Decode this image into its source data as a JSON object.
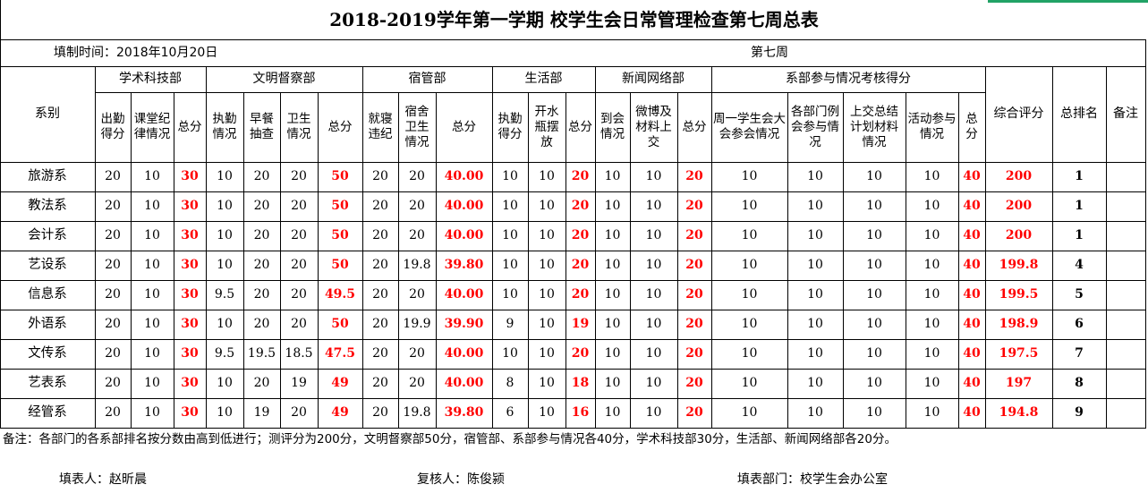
{
  "title": "2018-2019学年第一学期 校学生会日常管理检查第七周总表",
  "fill_time": "填制时间：2018年10月20日",
  "week": "第七周",
  "groups": {
    "academic": "学术科技部",
    "civil": "文明督察部",
    "dorm": "宿管部",
    "life": "生活部",
    "news": "新闻网络部",
    "dept": "系部参与情况考核得分"
  },
  "headers": {
    "dept_col": "系别",
    "a_attendance": "出勤得分",
    "a_discipline": "课堂纪律情况",
    "a_total": "总分",
    "c_duty": "执勤情况",
    "c_breakfast": "早餐抽查",
    "c_hygiene": "卫生情况",
    "c_total": "总分",
    "d_sleep": "就寝违纪",
    "d_hygiene": "宿舍卫生情况",
    "d_total": "总分",
    "l_duty": "执勤得分",
    "l_bottle": "开水瓶摆放",
    "l_total": "总分",
    "n_attend": "到会情况",
    "n_weibo": "微博及材料上交",
    "n_total": "总分",
    "p_weekly": "周一学生会大会参会情况",
    "p_meeting": "各部门例会参与情况",
    "p_plan": "上交总结计划材料情况",
    "p_activity": "活动参与情况",
    "p_total": "总分",
    "overall": "综合评分",
    "rank": "总排名",
    "remark": "备注"
  },
  "rows": [
    {
      "name": "旅游系",
      "v": [
        "20",
        "10",
        "30",
        "10",
        "20",
        "20",
        "50",
        "20",
        "20",
        "40.00",
        "10",
        "10",
        "20",
        "10",
        "10",
        "20",
        "10",
        "10",
        "10",
        "10",
        "40",
        "200",
        "1",
        ""
      ]
    },
    {
      "name": "教法系",
      "v": [
        "20",
        "10",
        "30",
        "10",
        "20",
        "20",
        "50",
        "20",
        "20",
        "40.00",
        "10",
        "10",
        "20",
        "10",
        "10",
        "20",
        "10",
        "10",
        "10",
        "10",
        "40",
        "200",
        "1",
        ""
      ]
    },
    {
      "name": "会计系",
      "v": [
        "20",
        "10",
        "30",
        "10",
        "20",
        "20",
        "50",
        "20",
        "20",
        "40.00",
        "10",
        "10",
        "20",
        "10",
        "10",
        "20",
        "10",
        "10",
        "10",
        "10",
        "40",
        "200",
        "1",
        ""
      ]
    },
    {
      "name": "艺设系",
      "v": [
        "20",
        "10",
        "30",
        "10",
        "20",
        "20",
        "50",
        "20",
        "19.8",
        "39.80",
        "10",
        "10",
        "20",
        "10",
        "10",
        "20",
        "10",
        "10",
        "10",
        "10",
        "40",
        "199.8",
        "4",
        ""
      ]
    },
    {
      "name": "信息系",
      "v": [
        "20",
        "10",
        "30",
        "9.5",
        "20",
        "20",
        "49.5",
        "20",
        "20",
        "40.00",
        "10",
        "10",
        "20",
        "10",
        "10",
        "20",
        "10",
        "10",
        "10",
        "10",
        "40",
        "199.5",
        "5",
        ""
      ]
    },
    {
      "name": "外语系",
      "v": [
        "20",
        "10",
        "30",
        "10",
        "20",
        "20",
        "50",
        "20",
        "19.9",
        "39.90",
        "9",
        "10",
        "19",
        "10",
        "10",
        "20",
        "10",
        "10",
        "10",
        "10",
        "40",
        "198.9",
        "6",
        ""
      ]
    },
    {
      "name": "文传系",
      "v": [
        "20",
        "10",
        "30",
        "9.5",
        "19.5",
        "18.5",
        "47.5",
        "20",
        "20",
        "40.00",
        "10",
        "10",
        "20",
        "10",
        "10",
        "20",
        "10",
        "10",
        "10",
        "10",
        "40",
        "197.5",
        "7",
        ""
      ]
    },
    {
      "name": "艺表系",
      "v": [
        "20",
        "10",
        "30",
        "10",
        "20",
        "19",
        "49",
        "20",
        "20",
        "40.00",
        "8",
        "10",
        "18",
        "10",
        "10",
        "20",
        "10",
        "10",
        "10",
        "10",
        "40",
        "197",
        "8",
        ""
      ]
    },
    {
      "name": "经管系",
      "v": [
        "20",
        "10",
        "30",
        "10",
        "19",
        "20",
        "49",
        "20",
        "19.8",
        "39.80",
        "6",
        "10",
        "16",
        "10",
        "10",
        "20",
        "10",
        "10",
        "10",
        "10",
        "40",
        "194.8",
        "9",
        ""
      ]
    }
  ],
  "note": "备注：各部门的各系部排名按分数由高到低进行；测评分为200分，文明督察部50分，宿管部、系部参与情况各40分，学术科技部30分，生活部、新闻网络部各20分。",
  "footer": {
    "filler": "填表人：赵昕晨",
    "reviewer": "复核人：陈俊颍",
    "department": "填表部门：校学生会办公室"
  },
  "colors": {
    "highlight": "#ff0000",
    "green_mark": "#21a366"
  }
}
